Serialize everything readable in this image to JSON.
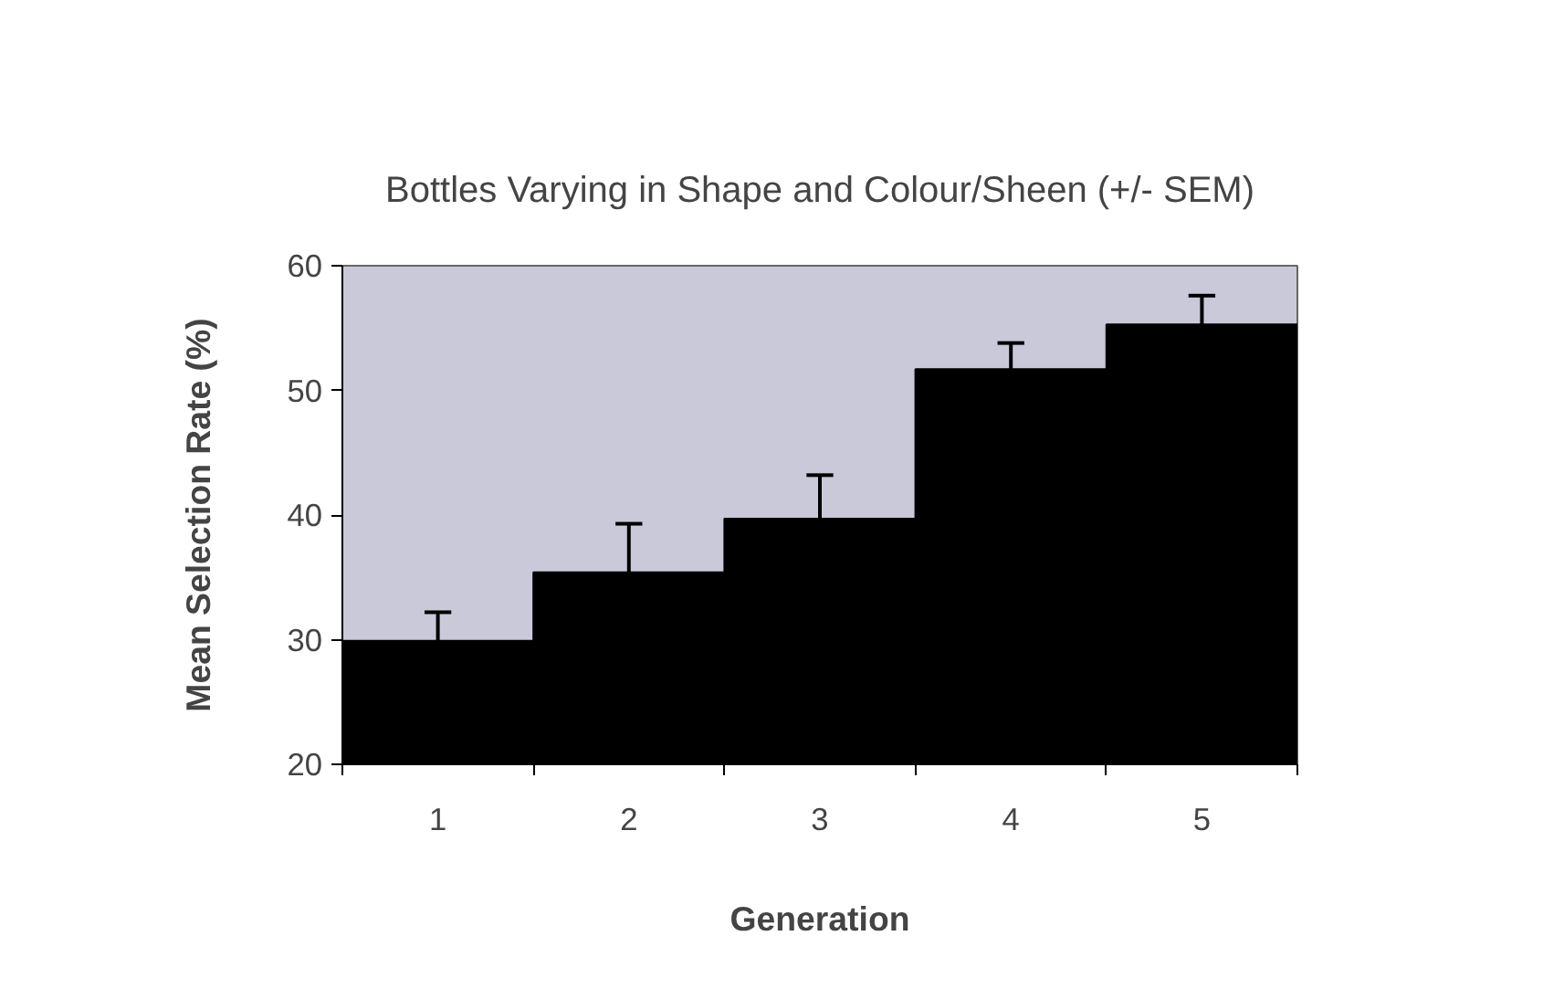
{
  "chart_data": {
    "type": "bar",
    "title": "Bottles Varying in Shape and Colour/Sheen (+/- SEM)",
    "xlabel": "Generation",
    "ylabel": "Mean Selection Rate (%)",
    "categories": [
      "1",
      "2",
      "3",
      "4",
      "5"
    ],
    "series": [
      {
        "color": "#000000",
        "values": [
          29.9,
          35.4,
          39.7,
          51.7,
          55.3
        ],
        "errors": [
          [
            29.9,
            32.2
          ],
          [
            35.4,
            39.3
          ],
          [
            39.7,
            43.2
          ],
          [
            51.7,
            53.8
          ],
          [
            55.3,
            57.6
          ]
        ]
      }
    ],
    "ylim": [
      20,
      60
    ],
    "yticks": [
      20,
      30,
      40,
      50,
      60
    ],
    "grid": false
  }
}
